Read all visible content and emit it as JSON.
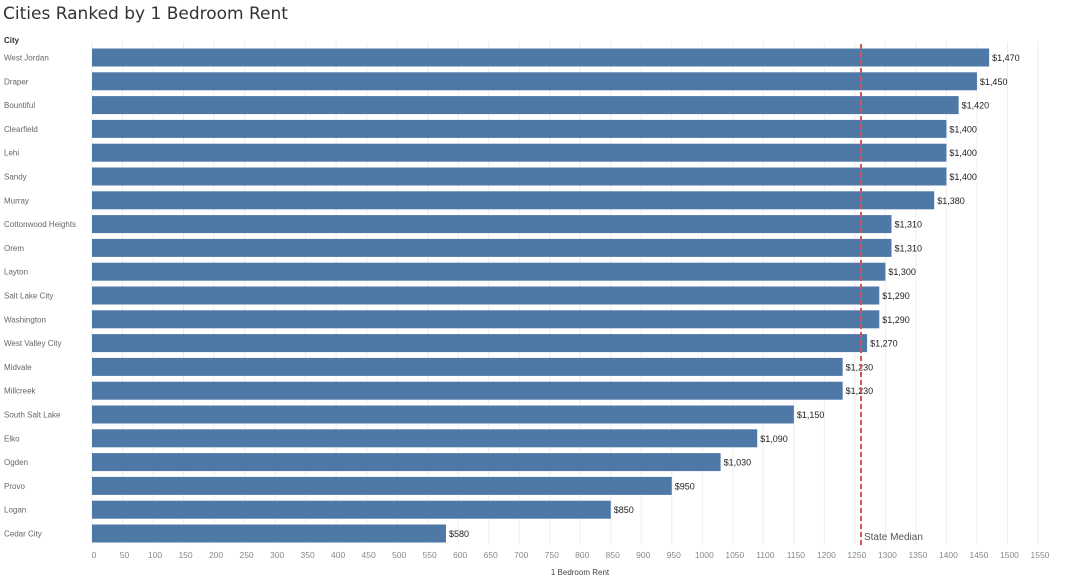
{
  "title": "Cities Ranked by 1 Bedroom Rent",
  "chart_data": {
    "type": "bar",
    "orientation": "horizontal",
    "title": "Cities Ranked by 1 Bedroom Rent",
    "row_header": "City",
    "xlabel": "1 Bedroom Rent",
    "ylabel": "",
    "xlim": [
      0,
      1550
    ],
    "xticks": [
      0,
      50,
      100,
      150,
      200,
      250,
      300,
      350,
      400,
      450,
      500,
      550,
      600,
      650,
      700,
      750,
      800,
      850,
      900,
      950,
      1000,
      1050,
      1100,
      1150,
      1200,
      1250,
      1300,
      1350,
      1400,
      1450,
      1500,
      1550
    ],
    "categories": [
      "West Jordan",
      "Draper",
      "Bountiful",
      "Clearfield",
      "Lehi",
      "Sandy",
      "Murray",
      "Cottonwood Heights",
      "Orem",
      "Layton",
      "Salt Lake City",
      "Washington",
      "West Valley City",
      "Midvale",
      "Millcreek",
      "South Salt Lake",
      "Elko",
      "Ogden",
      "Provo",
      "Logan",
      "Cedar City"
    ],
    "values": [
      1470,
      1450,
      1420,
      1400,
      1400,
      1400,
      1380,
      1310,
      1310,
      1300,
      1290,
      1290,
      1270,
      1230,
      1230,
      1150,
      1090,
      1030,
      950,
      850,
      580
    ],
    "value_labels": [
      "$1,470",
      "$1,450",
      "$1,420",
      "$1,400",
      "$1,400",
      "$1,400",
      "$1,380",
      "$1,310",
      "$1,310",
      "$1,300",
      "$1,290",
      "$1,290",
      "$1,270",
      "$1,230",
      "$1,230",
      "$1,150",
      "$1,090",
      "$1,030",
      "$950",
      "$850",
      "$580"
    ],
    "reference_line": {
      "label": "State Median",
      "value": 1260,
      "style": "dashed"
    },
    "grid": "vertical",
    "bar_color": "#4e79a7",
    "reference_color": "#d9534f"
  }
}
